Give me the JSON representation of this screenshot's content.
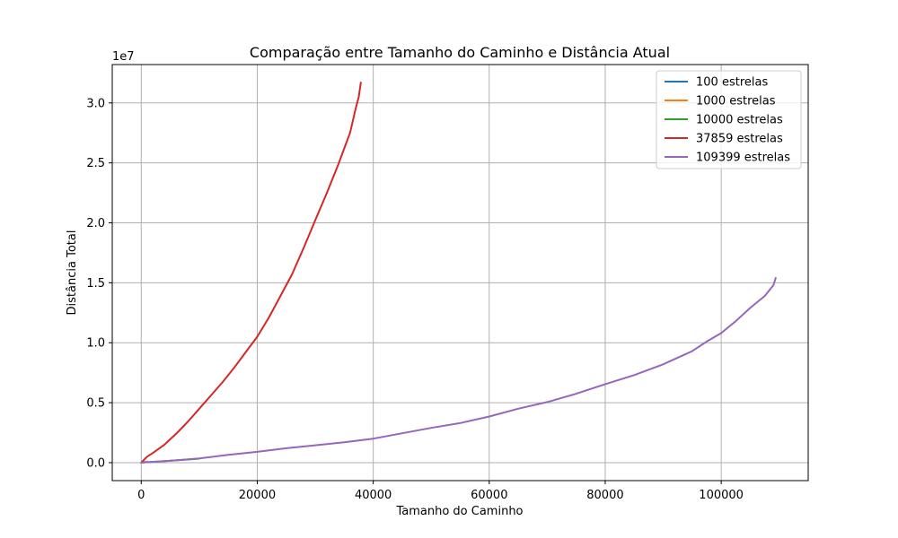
{
  "chart_data": {
    "type": "line",
    "title": "Comparação entre Tamanho do Caminho e Distância Atual",
    "xlabel": "Tamanho do Caminho",
    "ylabel": "Distância Total",
    "y_offset_label": "1e7",
    "xlim": [
      -5000,
      115000
    ],
    "ylim": [
      -0.15,
      3.32
    ],
    "y_scale_factor": 10000000,
    "x_ticks": [
      0,
      20000,
      40000,
      60000,
      80000,
      100000
    ],
    "x_tick_labels": [
      "0",
      "20000",
      "40000",
      "60000",
      "80000",
      "100000"
    ],
    "y_ticks": [
      0.0,
      0.5,
      1.0,
      1.5,
      2.0,
      2.5,
      3.0
    ],
    "y_tick_labels": [
      "0.0",
      "0.5",
      "1.0",
      "1.5",
      "2.0",
      "2.5",
      "3.0"
    ],
    "grid": true,
    "legend_position": "top-right",
    "series": [
      {
        "name": "100 estrelas",
        "color": "#1f77b4",
        "x": [
          0,
          100
        ],
        "y": [
          0.0,
          0.0002
        ]
      },
      {
        "name": "1000 estrelas",
        "color": "#ff7f0e",
        "x": [
          0,
          500,
          1000
        ],
        "y": [
          0.0,
          0.004,
          0.008
        ]
      },
      {
        "name": "10000 estrelas",
        "color": "#2ca02c",
        "x": [
          0,
          2000,
          4000,
          6000,
          8000,
          10000
        ],
        "y": [
          0.0,
          0.006,
          0.012,
          0.019,
          0.026,
          0.033
        ]
      },
      {
        "name": "37859 estrelas",
        "color": "#d62728",
        "x": [
          0,
          1000,
          2000,
          4000,
          6000,
          8000,
          10000,
          12000,
          14000,
          16000,
          18000,
          20000,
          22000,
          24000,
          26000,
          28000,
          30000,
          32000,
          34000,
          35000,
          36000,
          37000,
          37500,
          37859
        ],
        "y": [
          0.0,
          0.05,
          0.08,
          0.15,
          0.24,
          0.34,
          0.45,
          0.56,
          0.67,
          0.79,
          0.92,
          1.05,
          1.21,
          1.39,
          1.57,
          1.79,
          2.02,
          2.25,
          2.49,
          2.62,
          2.75,
          2.96,
          3.05,
          3.17
        ]
      },
      {
        "name": "109399 estrelas",
        "color": "#9467bd",
        "x": [
          0,
          5000,
          10000,
          15000,
          20000,
          25000,
          30000,
          35000,
          40000,
          45000,
          50000,
          55000,
          60000,
          65000,
          70000,
          75000,
          80000,
          85000,
          90000,
          95000,
          97500,
          100000,
          102500,
          105000,
          107500,
          109000,
          109399
        ],
        "y": [
          0.0,
          0.015,
          0.035,
          0.065,
          0.09,
          0.12,
          0.145,
          0.17,
          0.2,
          0.245,
          0.29,
          0.33,
          0.385,
          0.45,
          0.505,
          0.575,
          0.655,
          0.73,
          0.82,
          0.93,
          1.01,
          1.08,
          1.18,
          1.29,
          1.39,
          1.48,
          1.54
        ]
      }
    ]
  }
}
